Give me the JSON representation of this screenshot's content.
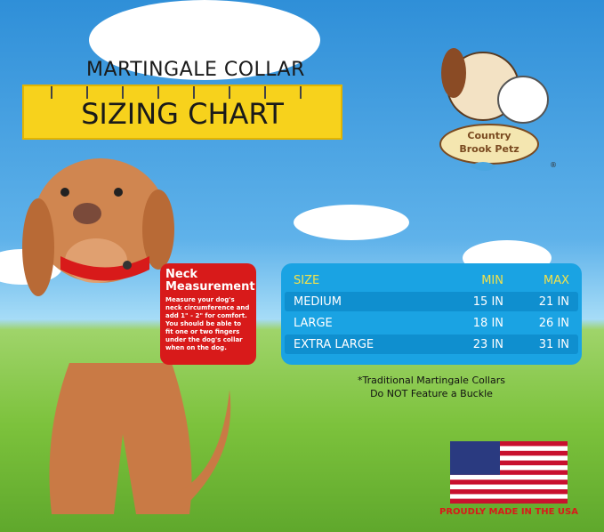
{
  "banner": {
    "subtitle": "MARTINGALE COLLAR",
    "title": "SIZING CHART"
  },
  "logo": {
    "text": "Country Brook Petz",
    "registered": "®"
  },
  "neck_box": {
    "title": "Neck Measurement",
    "body": "Measure your dog's neck circumference and add 1\" - 2\" for comfort. You should be able to fit one or two fingers under the dog's collar when on the dog."
  },
  "size_table": {
    "headers": [
      "SIZE",
      "MIN",
      "MAX"
    ],
    "rows": [
      [
        "MEDIUM",
        "15 IN",
        "21 IN"
      ],
      [
        "LARGE",
        "18 IN",
        "26 IN"
      ],
      [
        "EXTRA LARGE",
        "23 IN",
        "31 IN"
      ]
    ]
  },
  "footnote": {
    "line1": "*Traditional Martingale Collars",
    "line2": "Do NOT Feature a Buckle"
  },
  "made_in": "PROUDLY MADE IN THE USA",
  "colors": {
    "banner": "#f7d21c",
    "neck_box": "#d81a1a",
    "table": "#1aa3e3",
    "header_text": "#f4e24a"
  }
}
